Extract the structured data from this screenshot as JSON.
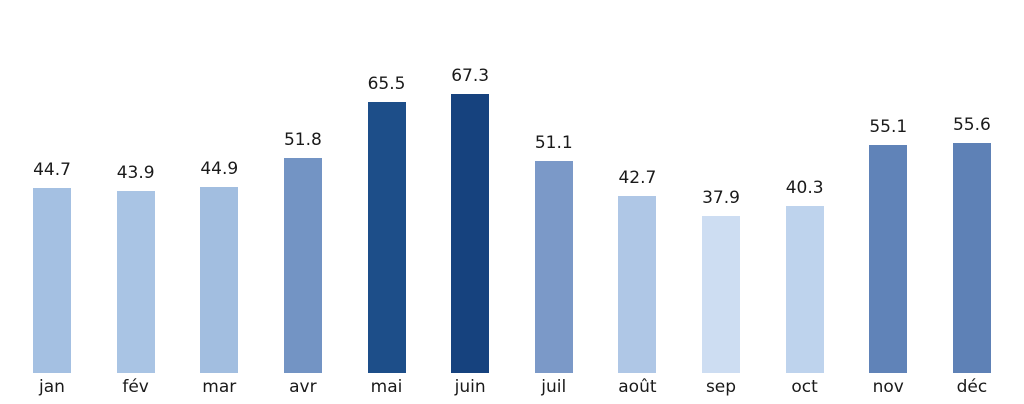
{
  "chart_data": {
    "type": "bar",
    "title": "",
    "xlabel": "",
    "ylabel": "",
    "categories": [
      "jan",
      "fév",
      "mar",
      "avr",
      "mai",
      "juin",
      "juil",
      "août",
      "sep",
      "oct",
      "nov",
      "déc"
    ],
    "values": [
      44.7,
      43.9,
      44.9,
      51.8,
      65.5,
      67.3,
      51.1,
      42.7,
      37.9,
      40.3,
      55.1,
      55.6
    ],
    "value_labels": [
      "44.7",
      "43.9",
      "44.9",
      "51.8",
      "65.5",
      "67.3",
      "51.1",
      "42.7",
      "37.9",
      "40.3",
      "55.1",
      "55.6"
    ],
    "bar_colors": [
      "#a4c0e2",
      "#a9c4e4",
      "#a2bee0",
      "#7394c4",
      "#1d4e89",
      "#16427e",
      "#7b99c8",
      "#afc7e6",
      "#cdddf2",
      "#bed3ed",
      "#6083b8",
      "#5e81b6"
    ],
    "ylim": [
      0,
      90
    ],
    "grid": false,
    "legend_position": "none",
    "axes_visible": false,
    "text_color": "#1a1a1a",
    "background_color": "#ffffff"
  }
}
